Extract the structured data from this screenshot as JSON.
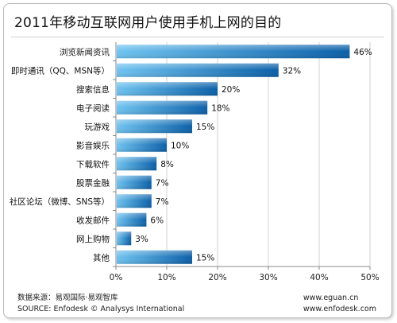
{
  "title": "2011年移动互联网用户使用手机上网的目的",
  "footer": {
    "source_cn": "数据来源：易观国际·易观智库",
    "source_en": "SOURCE: Enfodesk © Analysys International",
    "url1": "www.eguan.cn",
    "url2": "www.enfodesk.com"
  },
  "colors": {
    "bar_dark": "#0a5fa8",
    "bar_light": "#6ec3f0",
    "grid": "#d0d0d0",
    "axis": "#8a8a8a"
  },
  "chart_data": {
    "type": "bar",
    "orientation": "horizontal",
    "title": "2011年移动互联网用户使用手机上网的目的",
    "categories": [
      "浏览新闻资讯",
      "即时通讯（QQ、MSN等）",
      "搜索信息",
      "电子阅读",
      "玩游戏",
      "影音娱乐",
      "下载软件",
      "股票金融",
      "社区论坛（微博、SNS等）",
      "收发邮件",
      "网上购物",
      "其他"
    ],
    "values": [
      46,
      32,
      20,
      18,
      15,
      10,
      8,
      7,
      7,
      6,
      3,
      15
    ],
    "value_labels": [
      "46%",
      "32%",
      "20%",
      "18%",
      "15%",
      "10%",
      "8%",
      "7%",
      "7%",
      "6%",
      "3%",
      "15%"
    ],
    "xlim": [
      0,
      50
    ],
    "xticks": [
      "0%",
      "10%",
      "20%",
      "30%",
      "40%",
      "50%"
    ],
    "grid": true,
    "legend": "none"
  }
}
